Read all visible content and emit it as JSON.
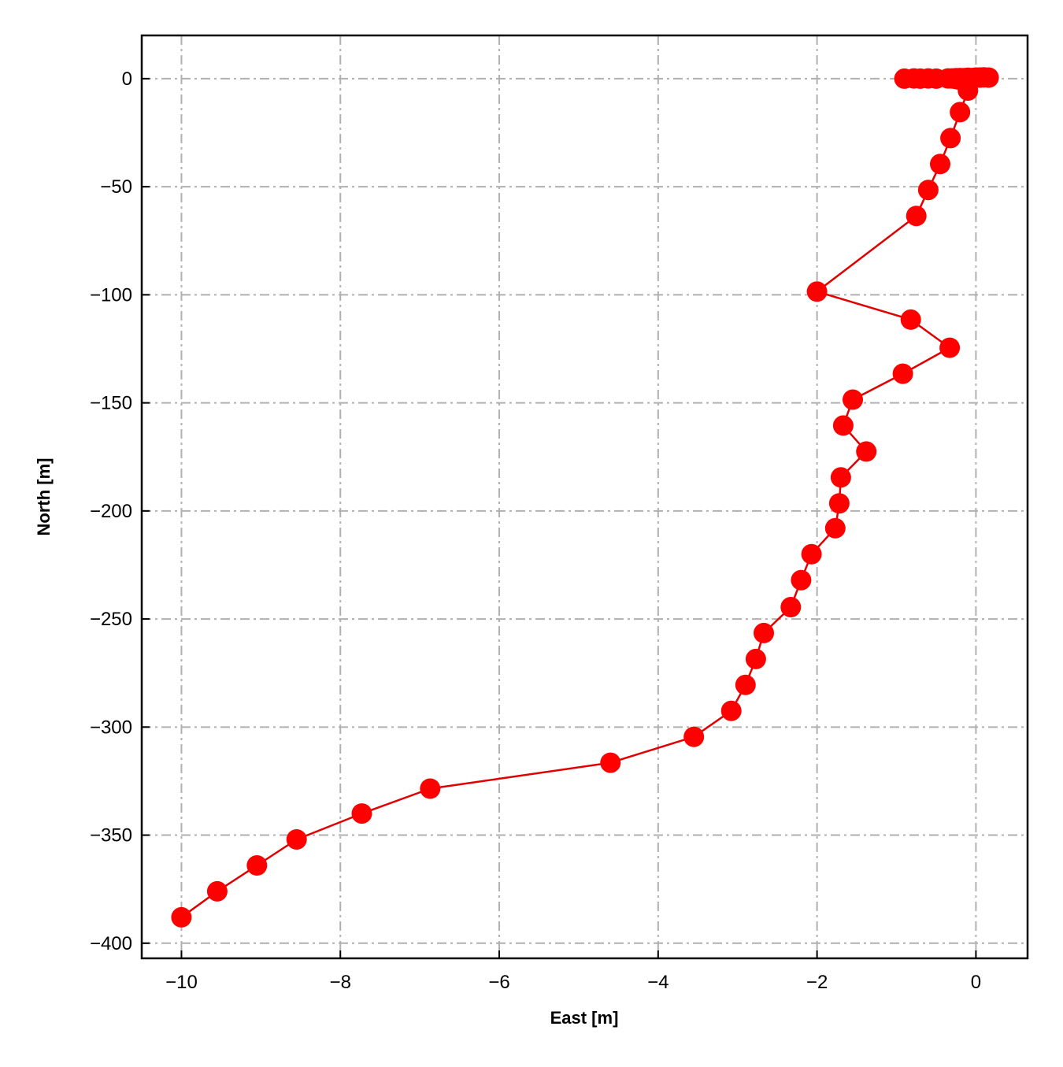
{
  "chart_data": {
    "type": "line",
    "title": "",
    "xlabel": "East [m]",
    "ylabel": "North [m]",
    "xlim": [
      -10.5,
      0.65
    ],
    "ylim": [
      -407,
      20
    ],
    "xticks": [
      -10,
      -8,
      -6,
      -4,
      -2,
      0
    ],
    "yticks": [
      0,
      -50,
      -100,
      -150,
      -200,
      -250,
      -300,
      -350,
      -400
    ],
    "grid": true,
    "legend": "none",
    "series": [
      {
        "color": "#ff0000",
        "line_color": "#e00000",
        "marker": "circle",
        "points": [
          [
            0.16,
            0.5
          ],
          [
            0.1,
            0.6
          ],
          [
            0.05,
            0.5
          ],
          [
            0.0,
            0.5
          ],
          [
            -0.05,
            0.3
          ],
          [
            -0.1,
            0.4
          ],
          [
            -0.15,
            0.2
          ],
          [
            -0.2,
            0.3
          ],
          [
            -0.25,
            0.2
          ],
          [
            -0.3,
            0.1
          ],
          [
            -0.35,
            0.1
          ],
          [
            -0.5,
            0.0
          ],
          [
            -0.6,
            0.1
          ],
          [
            -0.7,
            0.0
          ],
          [
            -0.78,
            0.1
          ],
          [
            -0.9,
            0.0
          ],
          [
            -0.1,
            -5.5
          ],
          [
            -0.2,
            -15.5
          ],
          [
            -0.32,
            -27.5
          ],
          [
            -0.45,
            -39.5
          ],
          [
            -0.6,
            -51.5
          ],
          [
            -0.75,
            -63.5
          ],
          [
            -2.0,
            -98.5
          ],
          [
            -0.82,
            -111.5
          ],
          [
            -0.33,
            -124.5
          ],
          [
            -0.92,
            -136.5
          ],
          [
            -1.55,
            -148.5
          ],
          [
            -1.67,
            -160.5
          ],
          [
            -1.38,
            -172.5
          ],
          [
            -1.7,
            -184.5
          ],
          [
            -1.72,
            -196.5
          ],
          [
            -1.77,
            -208
          ],
          [
            -2.07,
            -220
          ],
          [
            -2.2,
            -232
          ],
          [
            -2.33,
            -244.5
          ],
          [
            -2.67,
            -256.5
          ],
          [
            -2.77,
            -268.5
          ],
          [
            -2.9,
            -280.5
          ],
          [
            -3.08,
            -292.5
          ],
          [
            -3.55,
            -304.5
          ],
          [
            -4.6,
            -316.5
          ],
          [
            -6.87,
            -328.5
          ],
          [
            -7.73,
            -340
          ],
          [
            -8.55,
            -352
          ],
          [
            -9.05,
            -364
          ],
          [
            -9.55,
            -376
          ],
          [
            -10.0,
            -388
          ]
        ]
      }
    ]
  }
}
